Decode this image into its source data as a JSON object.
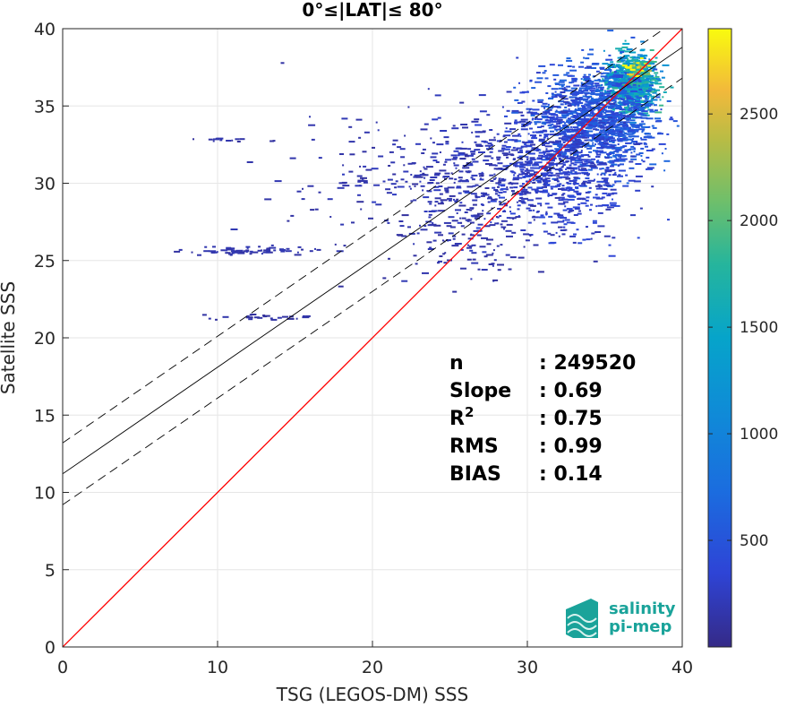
{
  "chart_data": {
    "type": "scatter",
    "subtype": "density-histogram",
    "title": "0°≤|LAT|≤ 80°",
    "xlabel": "TSG (LEGOS-DM) SSS",
    "ylabel": "Satellite SSS",
    "xlim": [
      0,
      40
    ],
    "ylim": [
      0,
      40
    ],
    "xticks": [
      "0",
      "10",
      "20",
      "30",
      "40"
    ],
    "yticks": [
      "0",
      "5",
      "10",
      "15",
      "20",
      "25",
      "30",
      "35",
      "40"
    ],
    "grid": true,
    "colorbar": {
      "colormap": "parula",
      "range": [
        0,
        2900
      ],
      "ticks": [
        "500",
        "1000",
        "1500",
        "2000",
        "2500"
      ]
    },
    "lines": [
      {
        "role": "one-to-one",
        "color": "#ff0000",
        "x": [
          0,
          40
        ],
        "y": [
          0,
          40
        ]
      },
      {
        "role": "regression",
        "color": "#000000",
        "style": "solid",
        "x": [
          0,
          40
        ],
        "y": [
          11.2,
          38.8
        ]
      },
      {
        "role": "regression-upper",
        "color": "#000000",
        "style": "dashed",
        "x": [
          0,
          40
        ],
        "y": [
          13.2,
          40.8
        ]
      },
      {
        "role": "regression-lower",
        "color": "#000000",
        "style": "dashed",
        "x": [
          0,
          40
        ],
        "y": [
          9.2,
          36.8
        ]
      }
    ],
    "stats": [
      {
        "label": "n",
        "value": ": 249520"
      },
      {
        "label": "Slope",
        "value": ": 0.69"
      },
      {
        "label": "R",
        "sup": "2",
        "value": ": 0.75"
      },
      {
        "label": "RMS",
        "value": ": 0.99"
      },
      {
        "label": "BIAS",
        "value": ": 0.14"
      }
    ],
    "density_clusters": [
      {
        "cx": 36.6,
        "cy": 36.6,
        "sx": 0.8,
        "sy": 0.9,
        "n": 900,
        "intensity": 0.55
      },
      {
        "cx": 34.5,
        "cy": 34.2,
        "sx": 1.8,
        "sy": 1.6,
        "n": 1100,
        "intensity": 0.2
      },
      {
        "cx": 32.0,
        "cy": 31.5,
        "sx": 2.2,
        "sy": 2.2,
        "n": 700,
        "intensity": 0.12
      },
      {
        "cx": 27.5,
        "cy": 30.5,
        "sx": 3.5,
        "sy": 2.0,
        "n": 350,
        "intensity": 0.08
      },
      {
        "cx": 22.0,
        "cy": 30.0,
        "sx": 4.0,
        "sy": 2.2,
        "n": 160,
        "intensity": 0.06
      },
      {
        "cx": 26.0,
        "cy": 26.5,
        "sx": 2.5,
        "sy": 1.5,
        "n": 120,
        "intensity": 0.06
      },
      {
        "cx": 12.0,
        "cy": 25.7,
        "sx": 2.2,
        "sy": 0.15,
        "n": 70,
        "intensity": 0.06
      },
      {
        "cx": 13.0,
        "cy": 21.4,
        "sx": 2.0,
        "sy": 0.1,
        "n": 25,
        "intensity": 0.05
      },
      {
        "cx": 11.0,
        "cy": 32.9,
        "sx": 1.8,
        "sy": 0.1,
        "n": 14,
        "intensity": 0.05
      },
      {
        "cx": 37.0,
        "cy": 37.4,
        "sx": 0.3,
        "sy": 0.3,
        "n": 60,
        "intensity": 0.95
      }
    ]
  },
  "logo": {
    "line1": "salinity",
    "line2": "pi-mep",
    "color": "#1aa39a"
  }
}
